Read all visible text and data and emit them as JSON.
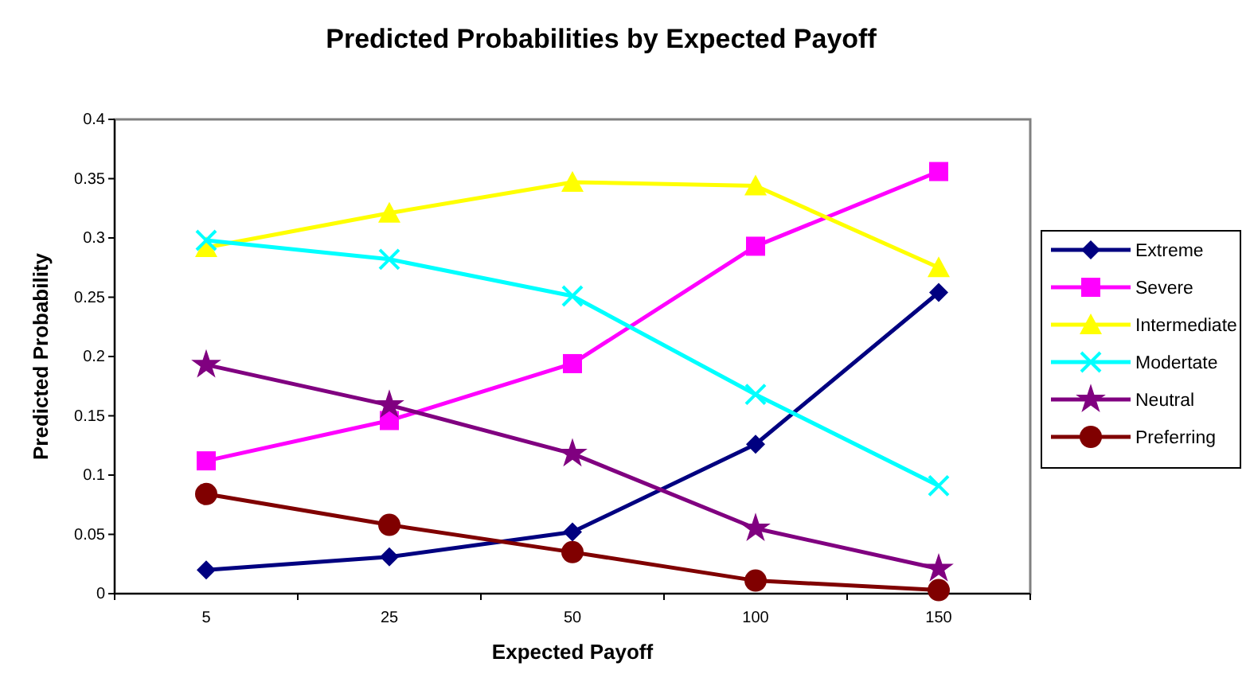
{
  "chart_data": {
    "type": "line",
    "title": "Predicted Probabilities by Expected Payoff",
    "xlabel": "Expected Payoff",
    "ylabel": "Predicted Probability",
    "categories": [
      "5",
      "25",
      "50",
      "100",
      "150"
    ],
    "ylim": [
      0,
      0.4
    ],
    "yticks": [
      0,
      0.05,
      0.1,
      0.15,
      0.2,
      0.25,
      0.3,
      0.35,
      0.4
    ],
    "grid": false,
    "legend": "right",
    "line_style": "solid",
    "series": [
      {
        "name": "Extreme",
        "color": "#000080",
        "marker": "diamond",
        "values": [
          0.02,
          0.031,
          0.052,
          0.126,
          0.254
        ]
      },
      {
        "name": "Severe",
        "color": "#ff00ff",
        "marker": "square",
        "values": [
          0.112,
          0.146,
          0.194,
          0.293,
          0.356
        ]
      },
      {
        "name": "Intermediate",
        "color": "#ffff00",
        "marker": "triangle",
        "values": [
          0.292,
          0.321,
          0.347,
          0.344,
          0.275
        ]
      },
      {
        "name": "Modertate",
        "color": "#00ffff",
        "marker": "cross",
        "values": [
          0.298,
          0.282,
          0.251,
          0.168,
          0.091
        ]
      },
      {
        "name": "Neutral",
        "color": "#800080",
        "marker": "star",
        "values": [
          0.193,
          0.159,
          0.118,
          0.055,
          0.021
        ]
      },
      {
        "name": "Preferring",
        "color": "#800000",
        "marker": "circle",
        "values": [
          0.084,
          0.058,
          0.035,
          0.011,
          0.003
        ]
      }
    ]
  }
}
